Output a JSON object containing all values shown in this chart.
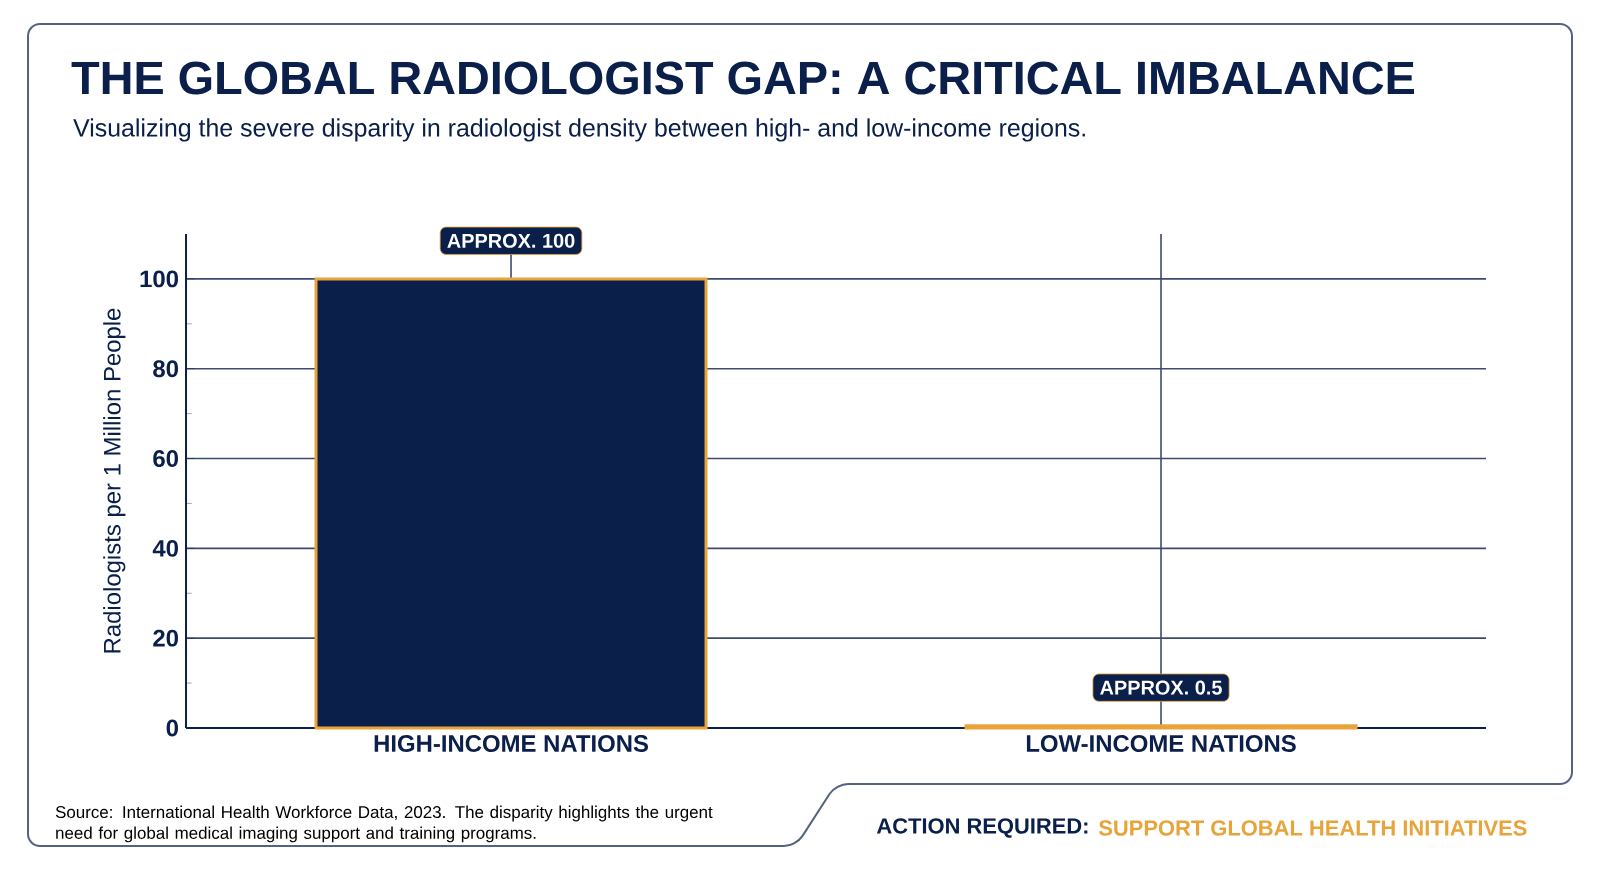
{
  "chart_data": {
    "type": "bar",
    "title": "THE GLOBAL RADIOLOGIST GAP: A CRITICAL IMBALANCE",
    "subtitle": "Visualizing the severe disparity in radiologist density between high- and low-income regions.",
    "ylabel": "Radiologists per 1 Million People",
    "categories": [
      "HIGH-INCOME NATIONS",
      "LOW-INCOME NATIONS"
    ],
    "values": [
      100,
      0.5
    ],
    "value_labels": [
      "APPROX. 100",
      "APPROX. 0.5"
    ],
    "color": "#0b1f4b",
    "ylim": [
      0,
      110
    ],
    "yticks": [
      0,
      20,
      40,
      60,
      80,
      100
    ],
    "grid": true,
    "annotations": [
      "Source: International Health Workforce Data, 2023. The disparity highlights the urgent need for global medical imaging support and training programs.",
      "ACTION REQUIRED:",
      "SUPPORT GLOBAL HEALTH INITIATIVES"
    ]
  }
}
